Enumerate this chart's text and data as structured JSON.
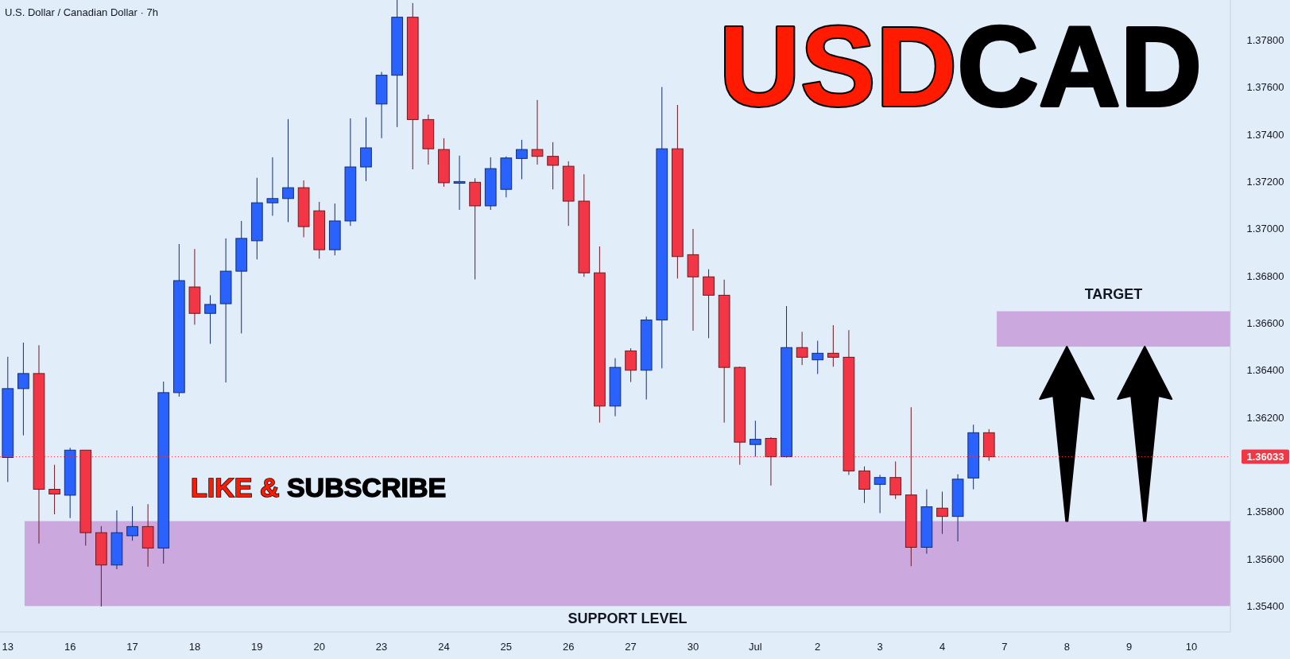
{
  "chart_data": {
    "type": "candlestick",
    "title": "USDCAD",
    "subtitle": "U.S. Dollar / Canadian Dollar · 7h",
    "annotations": [
      "LIKE & SUBSCRIBE"
    ],
    "categories": [
      "13",
      null,
      null,
      null,
      "16",
      null,
      null,
      null,
      "17",
      null,
      null,
      null,
      "18",
      null,
      null,
      null,
      "19",
      null,
      null,
      null,
      "20",
      null,
      null,
      null,
      "23",
      null,
      null,
      null,
      "24",
      null,
      null,
      null,
      "25",
      null,
      null,
      null,
      "26",
      null,
      null,
      null,
      "27",
      null,
      null,
      null,
      "30",
      null,
      null,
      null,
      "Jul",
      null,
      null,
      null,
      "2",
      null,
      null,
      null,
      "3",
      null,
      null,
      null,
      "4",
      null,
      null,
      null,
      "7",
      null,
      null,
      null,
      "8",
      null,
      null,
      null,
      "9",
      null,
      null,
      null,
      "10",
      null,
      null
    ],
    "ohlc": [
      [
        1.3603,
        1.36457,
        1.35926,
        1.36322
      ],
      [
        1.36322,
        1.36517,
        1.36124,
        1.36386
      ],
      [
        1.36386,
        1.36506,
        1.35665,
        1.35895
      ],
      [
        1.35895,
        1.35999,
        1.35789,
        1.35875
      ],
      [
        1.3587,
        1.36071,
        1.35773,
        1.36061
      ],
      [
        1.36061,
        1.36061,
        1.35656,
        1.35711
      ],
      [
        1.35711,
        1.35739,
        1.35398,
        1.35574
      ],
      [
        1.35574,
        1.35806,
        1.35556,
        1.35711
      ],
      [
        1.35698,
        1.35823,
        1.35677,
        1.35737
      ],
      [
        1.35737,
        1.35832,
        1.35567,
        1.35646
      ],
      [
        1.35646,
        1.36352,
        1.3558,
        1.36305
      ],
      [
        1.36305,
        1.36935,
        1.36288,
        1.3678
      ],
      [
        1.36753,
        1.36914,
        1.36593,
        1.36641
      ],
      [
        1.36641,
        1.36718,
        1.36512,
        1.36679
      ],
      [
        1.36682,
        1.36959,
        1.36348,
        1.3682
      ],
      [
        1.3682,
        1.37033,
        1.36556,
        1.36959
      ],
      [
        1.36949,
        1.37216,
        1.3687,
        1.3711
      ],
      [
        1.3711,
        1.37303,
        1.37055,
        1.37128
      ],
      [
        1.37128,
        1.37465,
        1.37028,
        1.37174
      ],
      [
        1.37174,
        1.37205,
        1.36964,
        1.37009
      ],
      [
        1.37076,
        1.37114,
        1.36873,
        1.36911
      ],
      [
        1.36911,
        1.37107,
        1.36887,
        1.37033
      ],
      [
        1.37033,
        1.37468,
        1.37012,
        1.37262
      ],
      [
        1.37262,
        1.37472,
        1.37202,
        1.37343
      ],
      [
        1.37529,
        1.37665,
        1.37384,
        1.37651
      ],
      [
        1.37651,
        1.3797,
        1.37431,
        1.37897
      ],
      [
        1.37897,
        1.37957,
        1.37252,
        1.37463
      ],
      [
        1.37463,
        1.37484,
        1.37272,
        1.37339
      ],
      [
        1.37336,
        1.37384,
        1.37178,
        1.37195
      ],
      [
        1.37193,
        1.3731,
        1.3708,
        1.372
      ],
      [
        1.37197,
        1.37214,
        1.36785,
        1.37097
      ],
      [
        1.37097,
        1.37303,
        1.3708,
        1.37255
      ],
      [
        1.37167,
        1.37307,
        1.37133,
        1.373
      ],
      [
        1.37298,
        1.37377,
        1.3721,
        1.37336
      ],
      [
        1.37336,
        1.37546,
        1.37272,
        1.37307
      ],
      [
        1.37307,
        1.37367,
        1.37167,
        1.37269
      ],
      [
        1.37265,
        1.37286,
        1.37012,
        1.37117
      ],
      [
        1.37117,
        1.37231,
        1.36796,
        1.36813
      ],
      [
        1.36813,
        1.36925,
        1.36178,
        1.36248
      ],
      [
        1.36248,
        1.36451,
        1.36205,
        1.36412
      ],
      [
        1.36482,
        1.36493,
        1.3635,
        1.364
      ],
      [
        1.364,
        1.36627,
        1.36276,
        1.36613
      ],
      [
        1.36613,
        1.37601,
        1.36408,
        1.37339
      ],
      [
        1.37339,
        1.37525,
        1.36789,
        1.36882
      ],
      [
        1.3689,
        1.36999,
        1.36568,
        1.36796
      ],
      [
        1.36796,
        1.36828,
        1.36536,
        1.36718
      ],
      [
        1.36718,
        1.36784,
        1.36178,
        1.36412
      ],
      [
        1.36412,
        1.36415,
        1.35999,
        1.36095
      ],
      [
        1.36085,
        1.36186,
        1.36033,
        1.36107
      ],
      [
        1.36111,
        1.36116,
        1.35911,
        1.36033
      ],
      [
        1.36033,
        1.36672,
        1.3603,
        1.36496
      ],
      [
        1.36496,
        1.36563,
        1.36422,
        1.36455
      ],
      [
        1.36444,
        1.36525,
        1.36384,
        1.36472
      ],
      [
        1.36472,
        1.36591,
        1.36415,
        1.36455
      ],
      [
        1.36455,
        1.3657,
        1.35956,
        1.35973
      ],
      [
        1.35973,
        1.35992,
        1.35837,
        1.35895
      ],
      [
        1.35916,
        1.35956,
        1.35794,
        1.35945
      ],
      [
        1.35945,
        1.36013,
        1.35854,
        1.35871
      ],
      [
        1.35871,
        1.36243,
        1.35569,
        1.35649
      ],
      [
        1.35649,
        1.35895,
        1.35622,
        1.35821
      ],
      [
        1.35815,
        1.35885,
        1.35706,
        1.3578
      ],
      [
        1.3578,
        1.35959,
        1.35674,
        1.35938
      ],
      [
        1.35943,
        1.36169,
        1.35895,
        1.36135
      ],
      [
        1.36135,
        1.3615,
        1.36016,
        1.36033
      ],
      null,
      null,
      null,
      null,
      null,
      null,
      null,
      null,
      null,
      null,
      null,
      null,
      null,
      null,
      null
    ],
    "colors": [
      "#2962ff",
      "#2962ff",
      "#f23645",
      "#f23645",
      "#2962ff",
      "#f23645",
      "#f23645",
      "#2962ff",
      "#2962ff",
      "#f23645",
      "#2962ff",
      "#2962ff",
      "#f23645",
      "#2962ff",
      "#2962ff",
      "#2962ff",
      "#2962ff",
      "#2962ff",
      "#2962ff",
      "#f23645",
      "#f23645",
      "#2962ff",
      "#2962ff",
      "#2962ff",
      "#2962ff",
      "#2962ff",
      "#f23645",
      "#f23645",
      "#f23645",
      "#2962ff",
      "#f23645",
      "#2962ff",
      "#2962ff",
      "#2962ff",
      "#f23645",
      "#f23645",
      "#f23645",
      "#f23645",
      "#f23645",
      "#2962ff",
      "#f23645",
      "#2962ff",
      "#2962ff",
      "#f23645",
      "#f23645",
      "#f23645",
      "#f23645",
      "#f23645",
      "#2962ff",
      "#f23645",
      "#2962ff",
      "#f23645",
      "#2962ff",
      "#f23645",
      "#f23645",
      "#f23645",
      "#2962ff",
      "#f23645",
      "#f23645",
      "#2962ff",
      "#f23645",
      "#2962ff",
      "#2962ff",
      "#f23645",
      null,
      null,
      null,
      null,
      null,
      null,
      null,
      null,
      null,
      null,
      null,
      null,
      null,
      null,
      null
    ],
    "ylim": [
      1.3529,
      1.3797
    ],
    "yticks": [
      {
        "value": 1.354,
        "label": "1.35400"
      },
      {
        "value": 1.356,
        "label": "1.35600"
      },
      {
        "value": 1.358,
        "label": "1.35800"
      },
      {
        "value": 1.362,
        "label": "1.36200"
      },
      {
        "value": 1.364,
        "label": "1.36400"
      },
      {
        "value": 1.366,
        "label": "1.36600"
      },
      {
        "value": 1.368,
        "label": "1.36800"
      },
      {
        "value": 1.37,
        "label": "1.37000"
      },
      {
        "value": 1.372,
        "label": "1.37200"
      },
      {
        "value": 1.374,
        "label": "1.37400"
      },
      {
        "value": 1.376,
        "label": "1.37600"
      },
      {
        "value": 1.378,
        "label": "1.37800"
      }
    ],
    "bands": [
      {
        "axis": "y",
        "from": 1.354,
        "to": 1.3576,
        "label": "SUPPORT LEVEL",
        "color": "#cba9df"
      },
      {
        "axis": "y",
        "from": 1.365,
        "to": 1.3665,
        "label": "TARGET",
        "color": "#cba9df"
      }
    ],
    "ref_lines": [
      {
        "axis": "y",
        "value": 1.36033,
        "label": "1.36033",
        "color": "#f23645",
        "line_style": "dotted"
      }
    ]
  }
}
